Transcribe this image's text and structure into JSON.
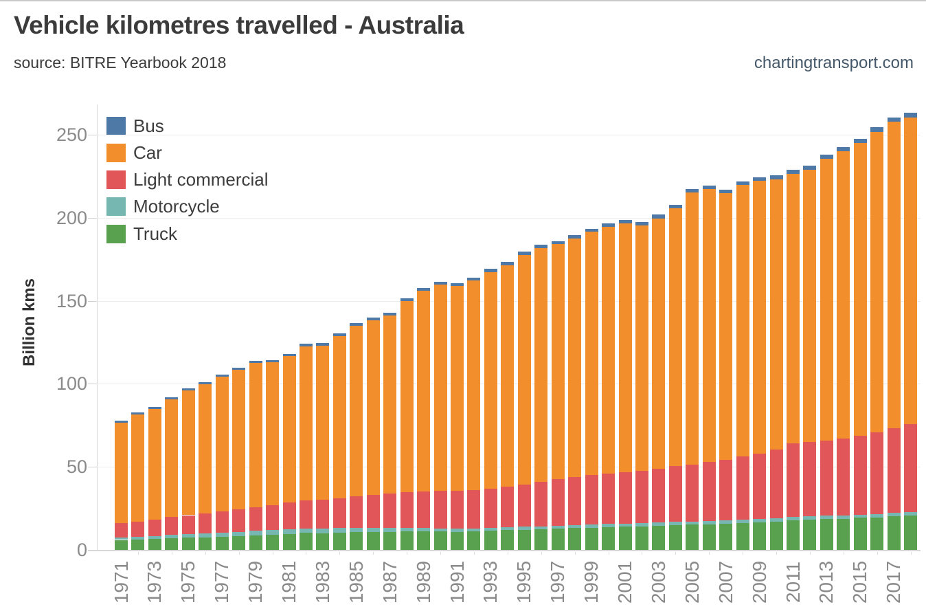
{
  "header": {
    "title": "Vehicle kilometres travelled - Australia",
    "subtitle": "source: BITRE Yearbook 2018",
    "site": "chartingtransport.com"
  },
  "chart_data": {
    "type": "bar",
    "stacked": true,
    "title": "Vehicle kilometres travelled - Australia",
    "ylabel": "Billion kms",
    "xlabel": "",
    "units": "billion vehicle kilometres",
    "ylim": [
      0,
      268
    ],
    "grid": "horizontal",
    "legend_position": "top-left-overlay",
    "y_ticks": [
      0,
      50,
      100,
      150,
      200,
      250
    ],
    "x_tick_labels": [
      "1971",
      "1973",
      "1975",
      "1977",
      "1979",
      "1981",
      "1983",
      "1985",
      "1987",
      "1989",
      "1991",
      "1993",
      "1995",
      "1997",
      "1999",
      "2001",
      "2003",
      "2005",
      "2007",
      "2009",
      "2011",
      "2013",
      "2015",
      "2017"
    ],
    "years": [
      1971,
      1972,
      1973,
      1974,
      1975,
      1976,
      1977,
      1978,
      1979,
      1980,
      1981,
      1982,
      1983,
      1984,
      1985,
      1986,
      1987,
      1988,
      1989,
      1990,
      1991,
      1992,
      1993,
      1994,
      1995,
      1996,
      1997,
      1998,
      1999,
      2000,
      2001,
      2002,
      2003,
      2004,
      2005,
      2006,
      2007,
      2008,
      2009,
      2010,
      2011,
      2012,
      2013,
      2014,
      2015,
      2016,
      2017,
      2018
    ],
    "stack_order": [
      "truck",
      "motorcycle",
      "light_commercial",
      "car",
      "bus"
    ],
    "series": [
      {
        "key": "bus",
        "name": "Bus",
        "color": "#4e79a7",
        "values": [
          1.1,
          1.1,
          1.2,
          1.2,
          1.2,
          1.3,
          1.3,
          1.3,
          1.4,
          1.4,
          1.4,
          1.5,
          1.5,
          1.5,
          1.6,
          1.6,
          1.6,
          1.7,
          1.7,
          1.7,
          1.8,
          1.8,
          1.8,
          1.9,
          1.9,
          1.9,
          2.0,
          2.0,
          2.0,
          2.1,
          2.1,
          2.1,
          2.2,
          2.2,
          2.2,
          2.3,
          2.3,
          2.3,
          2.4,
          2.4,
          2.4,
          2.5,
          2.5,
          2.6,
          2.6,
          2.7,
          2.7,
          2.8
        ]
      },
      {
        "key": "car",
        "name": "Car",
        "color": "#f28e2b",
        "values": [
          60.7,
          64.4,
          66.6,
          71.0,
          75.0,
          77.6,
          81.0,
          83.9,
          86.7,
          85.9,
          88.2,
          92.7,
          92.8,
          97.8,
          102.7,
          105.2,
          107.4,
          115.1,
          120.7,
          124.4,
          123.4,
          126.2,
          130.5,
          133.4,
          138.1,
          140.7,
          141.5,
          143.6,
          146.5,
          148.3,
          149.5,
          147.6,
          150.7,
          155.4,
          163.8,
          164.4,
          160.6,
          163.4,
          164.3,
          162.7,
          162.6,
          164.2,
          169.7,
          172.8,
          176.2,
          181.1,
          184.4,
          184.7
        ]
      },
      {
        "key": "light_commercial",
        "name": "Light commercial",
        "color": "#e15759",
        "values": [
          8.5,
          9.2,
          9.9,
          10.7,
          11.4,
          12.1,
          12.9,
          13.6,
          14.4,
          15.1,
          15.9,
          16.8,
          17.3,
          18.0,
          18.8,
          19.6,
          20.5,
          21.5,
          22.0,
          22.5,
          22.8,
          23.1,
          23.6,
          24.5,
          25.6,
          26.8,
          28.0,
          29.0,
          29.8,
          30.5,
          31.2,
          31.8,
          32.5,
          33.5,
          34.4,
          35.4,
          36.4,
          38.0,
          39.2,
          41.5,
          44.0,
          44.5,
          45.2,
          46.3,
          47.5,
          49.0,
          51.0,
          53.0
        ]
      },
      {
        "key": "motorcycle",
        "name": "Motorcycle",
        "color": "#76b7b2",
        "values": [
          1.5,
          1.6,
          1.8,
          2.0,
          2.2,
          2.3,
          2.4,
          2.5,
          2.6,
          2.7,
          2.8,
          2.8,
          2.8,
          2.8,
          2.7,
          2.6,
          2.4,
          2.2,
          2.1,
          2.0,
          1.9,
          1.8,
          1.8,
          1.7,
          1.7,
          1.7,
          1.7,
          1.7,
          1.8,
          1.8,
          1.8,
          1.8,
          1.9,
          1.9,
          1.9,
          2.0,
          2.0,
          2.1,
          2.1,
          2.1,
          2.0,
          2.0,
          2.0,
          2.0,
          2.0,
          2.1,
          2.2,
          2.0
        ]
      },
      {
        "key": "truck",
        "name": "Truck",
        "color": "#59a14f",
        "values": [
          6.0,
          6.3,
          6.6,
          7.0,
          7.3,
          7.6,
          8.0,
          8.4,
          8.8,
          9.2,
          9.7,
          10.2,
          10.0,
          10.3,
          10.6,
          10.8,
          10.9,
          11.0,
          11.2,
          11.0,
          10.8,
          11.0,
          11.4,
          11.8,
          12.2,
          12.5,
          12.8,
          13.1,
          13.4,
          13.8,
          13.9,
          14.2,
          14.5,
          14.9,
          15.2,
          15.4,
          15.7,
          16.2,
          16.5,
          17.0,
          18.0,
          18.3,
          18.5,
          18.8,
          19.3,
          19.6,
          20.2,
          20.7
        ]
      }
    ]
  }
}
